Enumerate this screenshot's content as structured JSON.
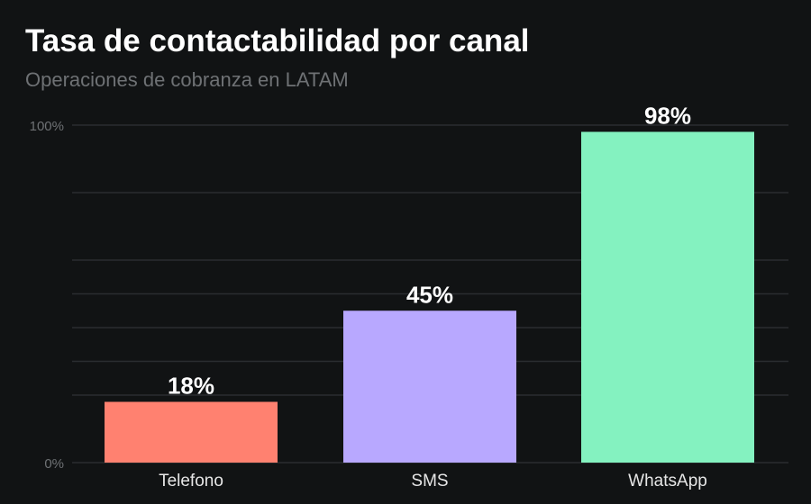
{
  "chart_data": {
    "type": "bar",
    "title": "Tasa de contactabilidad por canal",
    "subtitle": "Operaciones de cobranza en LATAM",
    "categories": [
      "Telefono",
      "SMS",
      "WhatsApp"
    ],
    "values": [
      18,
      45,
      98
    ],
    "data_labels": [
      "18%",
      "45%",
      "98%"
    ],
    "colors": [
      "#FF8170",
      "#B8A8FF",
      "#84F2C0"
    ],
    "ylim": [
      0,
      100
    ],
    "yticks": [
      {
        "value": 0,
        "label": "0%"
      },
      {
        "value": 100,
        "label": "100%"
      }
    ],
    "gridlines": [
      0,
      20,
      30,
      40,
      50,
      60,
      80,
      100
    ],
    "grid": true,
    "xlabel": "",
    "ylabel": "",
    "background": "#111314"
  }
}
